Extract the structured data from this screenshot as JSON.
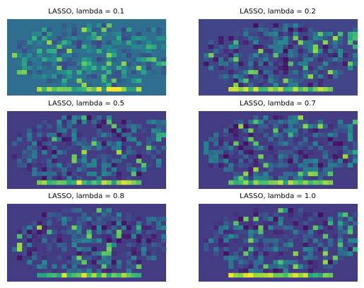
{
  "colors": {
    "background": "#ffffff",
    "colormap": "viridis"
  },
  "chart_data": [
    {
      "type": "heatmap",
      "title": "LASSO, lambda = 0.1"
    },
    {
      "type": "heatmap",
      "title": "LASSO, lambda = 0.2"
    },
    {
      "type": "heatmap",
      "title": "LASSO, lambda = 0.5"
    },
    {
      "type": "heatmap",
      "title": "LASSO, lambda = 0.7"
    },
    {
      "type": "heatmap",
      "title": "LASSO, lambda = 0.8"
    },
    {
      "type": "heatmap",
      "title": "LASSO, lambda = 1.0"
    }
  ]
}
